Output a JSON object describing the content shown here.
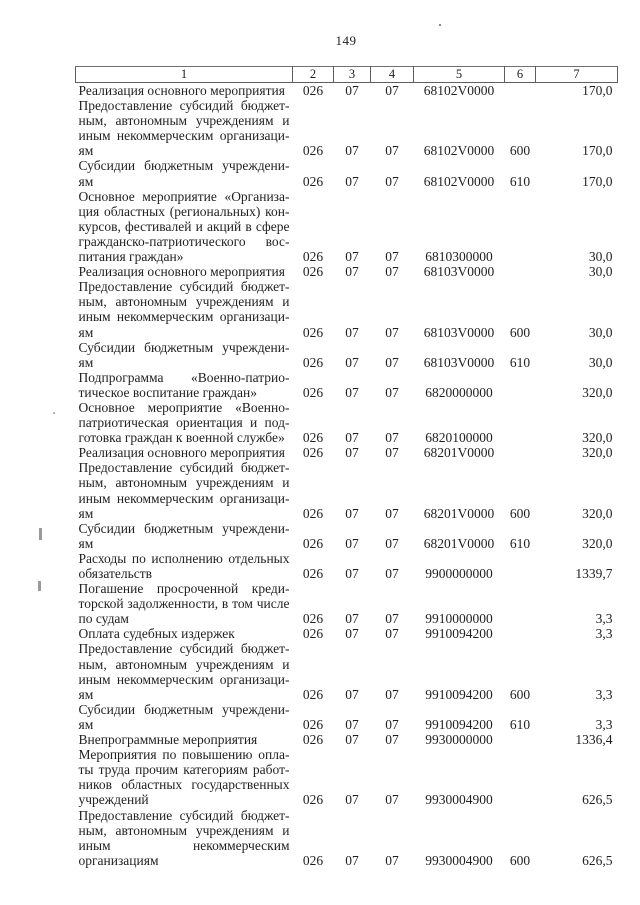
{
  "page": {
    "number": "149"
  },
  "table": {
    "header": [
      "1",
      "2",
      "3",
      "4",
      "5",
      "6",
      "7"
    ],
    "rows": [
      {
        "lines": [
          "Реализация основного мероприятия"
        ],
        "c2": "026",
        "c3": "07",
        "c4": "07",
        "c5": "68102V0000",
        "c6": "",
        "c7": "170,0"
      },
      {
        "lines": [
          "Предоставление субсидий бюджет-",
          "ным, автономным учреждениям и",
          "иным некоммерческим организаци-",
          "ям"
        ],
        "c2": "026",
        "c3": "07",
        "c4": "07",
        "c5": "68102V0000",
        "c6": "600",
        "c7": "170,0"
      },
      {
        "lines": [
          "Субсидии бюджетным учреждени-",
          "ям"
        ],
        "c2": "026",
        "c3": "07",
        "c4": "07",
        "c5": "68102V0000",
        "c6": "610",
        "c7": "170,0"
      },
      {
        "lines": [
          "Основное мероприятие «Организа-",
          "ция областных (региональных) кон-",
          "курсов, фестивалей и акций в сфере",
          "гражданско-патриотического вос-",
          "питания граждан»"
        ],
        "c2": "026",
        "c3": "07",
        "c4": "07",
        "c5": "6810300000",
        "c6": "",
        "c7": "30,0"
      },
      {
        "lines": [
          "Реализация основного мероприятия"
        ],
        "c2": "026",
        "c3": "07",
        "c4": "07",
        "c5": "68103V0000",
        "c6": "",
        "c7": "30,0"
      },
      {
        "lines": [
          "Предоставление субсидий бюджет-",
          "ным, автономным учреждениям и",
          "иным некоммерческим организаци-",
          "ям"
        ],
        "c2": "026",
        "c3": "07",
        "c4": "07",
        "c5": "68103V0000",
        "c6": "600",
        "c7": "30,0"
      },
      {
        "lines": [
          "Субсидии бюджетным учреждени-",
          "ям"
        ],
        "c2": "026",
        "c3": "07",
        "c4": "07",
        "c5": "68103V0000",
        "c6": "610",
        "c7": "30,0"
      },
      {
        "lines": [
          "Подпрограмма «Военно-патрио-",
          "тическое воспитание граждан»"
        ],
        "c2": "026",
        "c3": "07",
        "c4": "07",
        "c5": "6820000000",
        "c6": "",
        "c7": "320,0"
      },
      {
        "lines": [
          "Основное мероприятие «Военно-",
          "патриотическая ориентация и под-",
          "готовка граждан к военной службе»"
        ],
        "c2": "026",
        "c3": "07",
        "c4": "07",
        "c5": "6820100000",
        "c6": "",
        "c7": "320,0"
      },
      {
        "lines": [
          "Реализация основного мероприятия"
        ],
        "c2": "026",
        "c3": "07",
        "c4": "07",
        "c5": "68201V0000",
        "c6": "",
        "c7": "320,0"
      },
      {
        "lines": [
          "Предоставление субсидий бюджет-",
          "ным, автономным учреждениям и",
          "иным некоммерческим организаци-",
          "ям"
        ],
        "c2": "026",
        "c3": "07",
        "c4": "07",
        "c5": "68201V0000",
        "c6": "600",
        "c7": "320,0"
      },
      {
        "lines": [
          "Субсидии бюджетным учреждени-",
          "ям"
        ],
        "c2": "026",
        "c3": "07",
        "c4": "07",
        "c5": "68201V0000",
        "c6": "610",
        "c7": "320,0"
      },
      {
        "lines": [
          "Расходы по исполнению отдельных",
          "обязательств"
        ],
        "c2": "026",
        "c3": "07",
        "c4": "07",
        "c5": "9900000000",
        "c6": "",
        "c7": "1339,7"
      },
      {
        "lines": [
          "Погашение просроченной креди-",
          "торской задолженности, в том числе",
          "по судам"
        ],
        "c2": "026",
        "c3": "07",
        "c4": "07",
        "c5": "9910000000",
        "c6": "",
        "c7": "3,3"
      },
      {
        "lines": [
          "Оплата судебных издержек"
        ],
        "c2": "026",
        "c3": "07",
        "c4": "07",
        "c5": "9910094200",
        "c6": "",
        "c7": "3,3"
      },
      {
        "lines": [
          "Предоставление субсидий бюджет-",
          "ным, автономным учреждениям и",
          "иным некоммерческим организаци-",
          "ям"
        ],
        "c2": "026",
        "c3": "07",
        "c4": "07",
        "c5": "9910094200",
        "c6": "600",
        "c7": "3,3"
      },
      {
        "lines": [
          "Субсидии бюджетным учреждени-",
          "ям"
        ],
        "c2": "026",
        "c3": "07",
        "c4": "07",
        "c5": "9910094200",
        "c6": "610",
        "c7": "3,3"
      },
      {
        "lines": [
          "Внепрограммные мероприятия"
        ],
        "c2": "026",
        "c3": "07",
        "c4": "07",
        "c5": "9930000000",
        "c6": "",
        "c7": "1336,4"
      },
      {
        "lines": [
          "Мероприятия по повышению опла-",
          "ты труда прочим категориям работ-",
          "ников областных государственных",
          "учреждений"
        ],
        "c2": "026",
        "c3": "07",
        "c4": "07",
        "c5": "9930004900",
        "c6": "",
        "c7": "626,5"
      },
      {
        "lines": [
          "Предоставление субсидий бюджет-",
          "ным, автономным учреждениям и",
          "иным некоммерческим организациям"
        ],
        "c2": "026",
        "c3": "07",
        "c4": "07",
        "c5": "9930004900",
        "c6": "600",
        "c7": "626,5"
      }
    ]
  }
}
